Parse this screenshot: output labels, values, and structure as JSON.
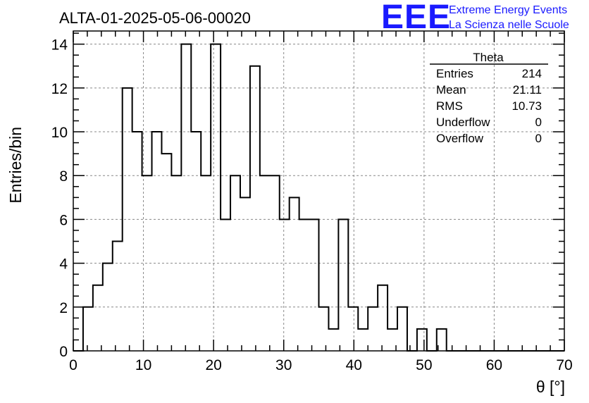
{
  "header": {
    "title": "ALTA-01-2025-05-06-00020",
    "logo_text": "EEE",
    "brand_line1": "Extreme Energy Events",
    "brand_line2": "La Scienza nelle Scuole",
    "brand_color": "#1a1aff"
  },
  "stats_box": {
    "title": "Theta",
    "rows": [
      {
        "label": "Entries",
        "value": "214"
      },
      {
        "label": "Mean",
        "value": "21.11"
      },
      {
        "label": "RMS",
        "value": "10.73"
      },
      {
        "label": "Underflow",
        "value": "0"
      },
      {
        "label": "Overflow",
        "value": "0"
      }
    ]
  },
  "chart_data": {
    "type": "bar",
    "style": "step-histogram",
    "title": "ALTA-01-2025-05-06-00020",
    "xlabel": "θ [°]",
    "ylabel": "Entries/bin",
    "xlim": [
      0,
      70
    ],
    "ylim": [
      0,
      14.6
    ],
    "grid": true,
    "bin_edges": [
      0,
      1.4,
      2.8,
      4.2,
      5.6,
      7.0,
      8.4,
      9.8,
      11.2,
      12.6,
      14.0,
      15.4,
      16.8,
      18.2,
      19.6,
      21.0,
      22.4,
      23.8,
      25.2,
      26.6,
      28.0,
      29.4,
      30.8,
      32.2,
      33.6,
      35.0,
      36.4,
      37.8,
      39.2,
      40.6,
      42.0,
      43.4,
      44.8,
      46.2,
      47.6,
      49.0,
      50.4,
      51.8,
      53.2,
      54.6,
      56.0,
      57.4,
      58.8,
      60.2,
      61.6,
      63.0,
      64.4,
      65.8,
      67.2,
      68.6,
      70.0
    ],
    "values": [
      0,
      2,
      3,
      4,
      5,
      12,
      10,
      8,
      10,
      9,
      8,
      14,
      10,
      8,
      14,
      6,
      8,
      7,
      13,
      8,
      8,
      6,
      7,
      6,
      6,
      2,
      1,
      6,
      2,
      1,
      2,
      3,
      1,
      2,
      0,
      1,
      0,
      1,
      0,
      0,
      0,
      0,
      0,
      0,
      0,
      0,
      0,
      0,
      0,
      0
    ],
    "x_ticks": [
      "0",
      "10",
      "20",
      "30",
      "40",
      "50",
      "60",
      "70"
    ],
    "y_ticks": [
      "0",
      "2",
      "4",
      "6",
      "8",
      "10",
      "12",
      "14"
    ]
  }
}
